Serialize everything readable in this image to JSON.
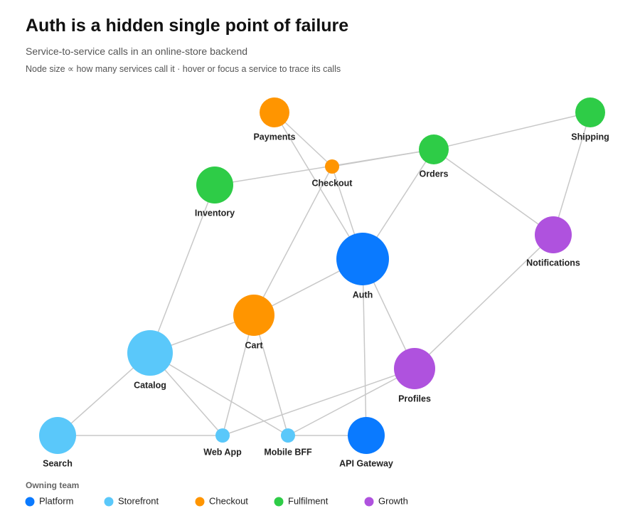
{
  "header": {
    "title": "Auth is a hidden single point of failure",
    "subtitle": "Service-to-service calls in an online-store backend",
    "note": "Node size ∝ how many services call it · hover or focus a service to trace its calls"
  },
  "nodes": [
    {
      "label": "Payments",
      "team": "Checkout"
    },
    {
      "label": "Checkout",
      "team": "Checkout"
    },
    {
      "label": "Orders",
      "team": "Fulfilment"
    },
    {
      "label": "Shipping",
      "team": "Fulfilment"
    },
    {
      "label": "Inventory",
      "team": "Fulfilment"
    },
    {
      "label": "Auth",
      "team": "Platform"
    },
    {
      "label": "Notifications",
      "team": "Growth"
    },
    {
      "label": "Cart",
      "team": "Checkout"
    },
    {
      "label": "Catalog",
      "team": "Storefront"
    },
    {
      "label": "Profiles",
      "team": "Growth"
    },
    {
      "label": "Search",
      "team": "Storefront"
    },
    {
      "label": "Web App",
      "team": "Storefront"
    },
    {
      "label": "Mobile BFF",
      "team": "Storefront"
    },
    {
      "label": "API Gateway",
      "team": "Platform"
    }
  ],
  "edges": [
    {
      "from": "Checkout",
      "to": "Payments"
    },
    {
      "from": "Payments",
      "to": "Auth"
    },
    {
      "from": "Checkout",
      "to": "Auth"
    },
    {
      "from": "Checkout",
      "to": "Cart"
    },
    {
      "from": "Inventory",
      "to": "Orders"
    },
    {
      "from": "Checkout",
      "to": "Orders"
    },
    {
      "from": "Orders",
      "to": "Shipping"
    },
    {
      "from": "Orders",
      "to": "Auth"
    },
    {
      "from": "Orders",
      "to": "Notifications"
    },
    {
      "from": "Shipping",
      "to": "Notifications"
    },
    {
      "from": "Profiles",
      "to": "Notifications"
    },
    {
      "from": "Profiles",
      "to": "Auth"
    },
    {
      "from": "Cart",
      "to": "Auth"
    },
    {
      "from": "API Gateway",
      "to": "Auth"
    },
    {
      "from": "Catalog",
      "to": "Inventory"
    },
    {
      "from": "Cart",
      "to": "Catalog"
    },
    {
      "from": "Search",
      "to": "Catalog"
    },
    {
      "from": "Web App",
      "to": "Catalog"
    },
    {
      "from": "Mobile BFF",
      "to": "Catalog"
    },
    {
      "from": "Web App",
      "to": "Cart"
    },
    {
      "from": "Mobile BFF",
      "to": "Cart"
    },
    {
      "from": "Web App",
      "to": "Search"
    },
    {
      "from": "Mobile BFF",
      "to": "API Gateway"
    },
    {
      "from": "Web App",
      "to": "Profiles"
    },
    {
      "from": "Mobile BFF",
      "to": "Profiles"
    }
  ],
  "legend": {
    "title": "Owning team",
    "teams": [
      {
        "name": "Platform",
        "color": "#0a7aff"
      },
      {
        "name": "Storefront",
        "color": "#5ac8fa"
      },
      {
        "name": "Checkout",
        "color": "#ff9500"
      },
      {
        "name": "Fulfilment",
        "color": "#2ecc47"
      },
      {
        "name": "Growth",
        "color": "#af52de"
      }
    ]
  }
}
